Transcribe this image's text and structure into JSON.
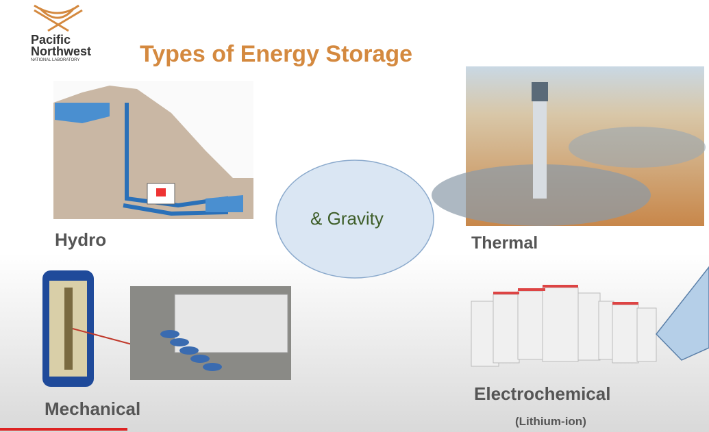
{
  "logo": {
    "line1": "Pacific",
    "line2": "Northwest",
    "line3": "NATIONAL LABORATORY"
  },
  "title": "Types of Energy Storage",
  "callout": "& Gravity",
  "sections": {
    "hydro": "Hydro",
    "thermal": "Thermal",
    "mechanical": "Mechanical",
    "electrochemical": "Electrochemical",
    "electrochemical_note": "(Lithium-ion)"
  }
}
